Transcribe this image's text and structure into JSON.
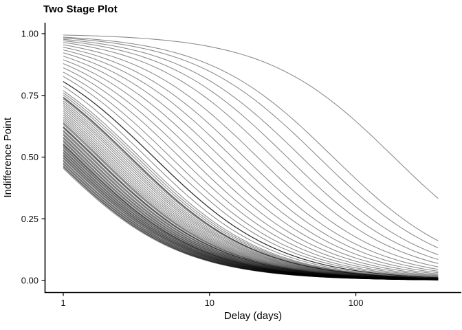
{
  "plot": {
    "title": "Two Stage Plot"
  },
  "chart_data": {
    "type": "line",
    "title": "Two Stage Plot",
    "xlabel": "Delay (days)",
    "ylabel": "Indifference Point",
    "x_scale": "log10",
    "x_tick_values": [
      1,
      10,
      100
    ],
    "x_tick_labels": [
      "1",
      "10",
      "100"
    ],
    "y_tick_values": [
      1.0,
      0.75,
      0.5,
      0.25,
      0.0
    ],
    "y_tick_labels": [
      "1.00",
      "0.75",
      "0.50",
      "0.25",
      "0.00"
    ],
    "x_range": [
      1,
      365
    ],
    "ylim": [
      0,
      1
    ],
    "grid": false,
    "legend": "none",
    "background": "#ffffff",
    "axis_color": "#000000",
    "line_color": "rgba(0,0,0,0.45)",
    "line_width": 1.1,
    "model": "per-subject hyperbolic discounting curves: V = 1 / (1 + k * delay), delay 1 to 365 days",
    "n_curves": 86,
    "series": [
      {
        "name": "individual-discount-curves",
        "k_values": [
          0.0055,
          0.0143,
          0.018,
          0.0235,
          0.0295,
          0.037,
          0.047,
          0.058,
          0.07,
          0.084,
          0.1,
          0.118,
          0.138,
          0.16,
          0.185,
          0.21,
          0.24,
          0.2405,
          0.2415,
          0.27,
          0.3,
          0.315,
          0.33,
          0.345,
          0.3505,
          0.351,
          0.36,
          0.375,
          0.39,
          0.405,
          0.42,
          0.4375,
          0.455,
          0.4725,
          0.49,
          0.5075,
          0.525,
          0.5425,
          0.56,
          0.57,
          0.58,
          0.6,
          0.61,
          0.6105,
          0.62,
          0.64,
          0.65,
          0.66,
          0.68,
          0.69,
          0.7,
          0.72,
          0.73,
          0.74,
          0.76,
          0.77,
          0.78,
          0.8,
          0.81,
          0.82,
          0.8205,
          0.84,
          0.85,
          0.86,
          0.88,
          0.89,
          0.9,
          0.92,
          0.93,
          0.94,
          0.96,
          0.97,
          0.98,
          1.0,
          1.012,
          1.025,
          1.05,
          1.062,
          1.075,
          1.1,
          1.112,
          1.125,
          1.15,
          1.162,
          1.175,
          1.2
        ]
      }
    ]
  }
}
